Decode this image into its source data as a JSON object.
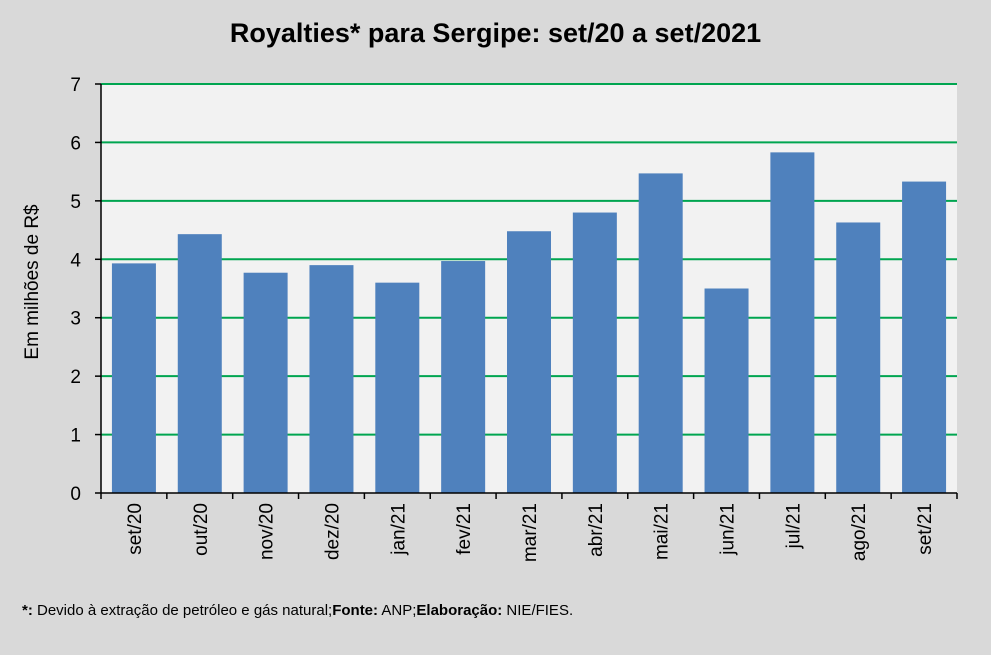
{
  "chart_data": {
    "type": "bar",
    "title": "Royalties* para Sergipe: set/20 a set/2021",
    "xlabel": "",
    "ylabel": "Em milhões de R$",
    "ylim": [
      0,
      7
    ],
    "yticks": [
      0,
      1,
      2,
      3,
      4,
      5,
      6,
      7
    ],
    "categories": [
      "set/20",
      "out/20",
      "nov/20",
      "dez/20",
      "jan/21",
      "fev/21",
      "mar/21",
      "abr/21",
      "mai/21",
      "jun/21",
      "jul/21",
      "ago/21",
      "set/21"
    ],
    "values": [
      3.93,
      4.43,
      3.77,
      3.9,
      3.6,
      3.97,
      4.48,
      4.8,
      5.47,
      3.5,
      5.83,
      4.63,
      5.33
    ],
    "grid": true,
    "legend": "none"
  },
  "colors": {
    "bar": "#4f81bd",
    "gridline": "#00a550",
    "plot_bg": "#f2f2f2",
    "page_bg": "#d9d9d9"
  },
  "footnote": {
    "mark": "*:",
    "source_text": " Devido à extração de petróleo e gás natural;",
    "fonte_label": "Fonte:",
    "fonte_value": " ANP;",
    "elaboracao_label": "Elaboração:",
    "elaboracao_value": " NIE/FIES."
  }
}
